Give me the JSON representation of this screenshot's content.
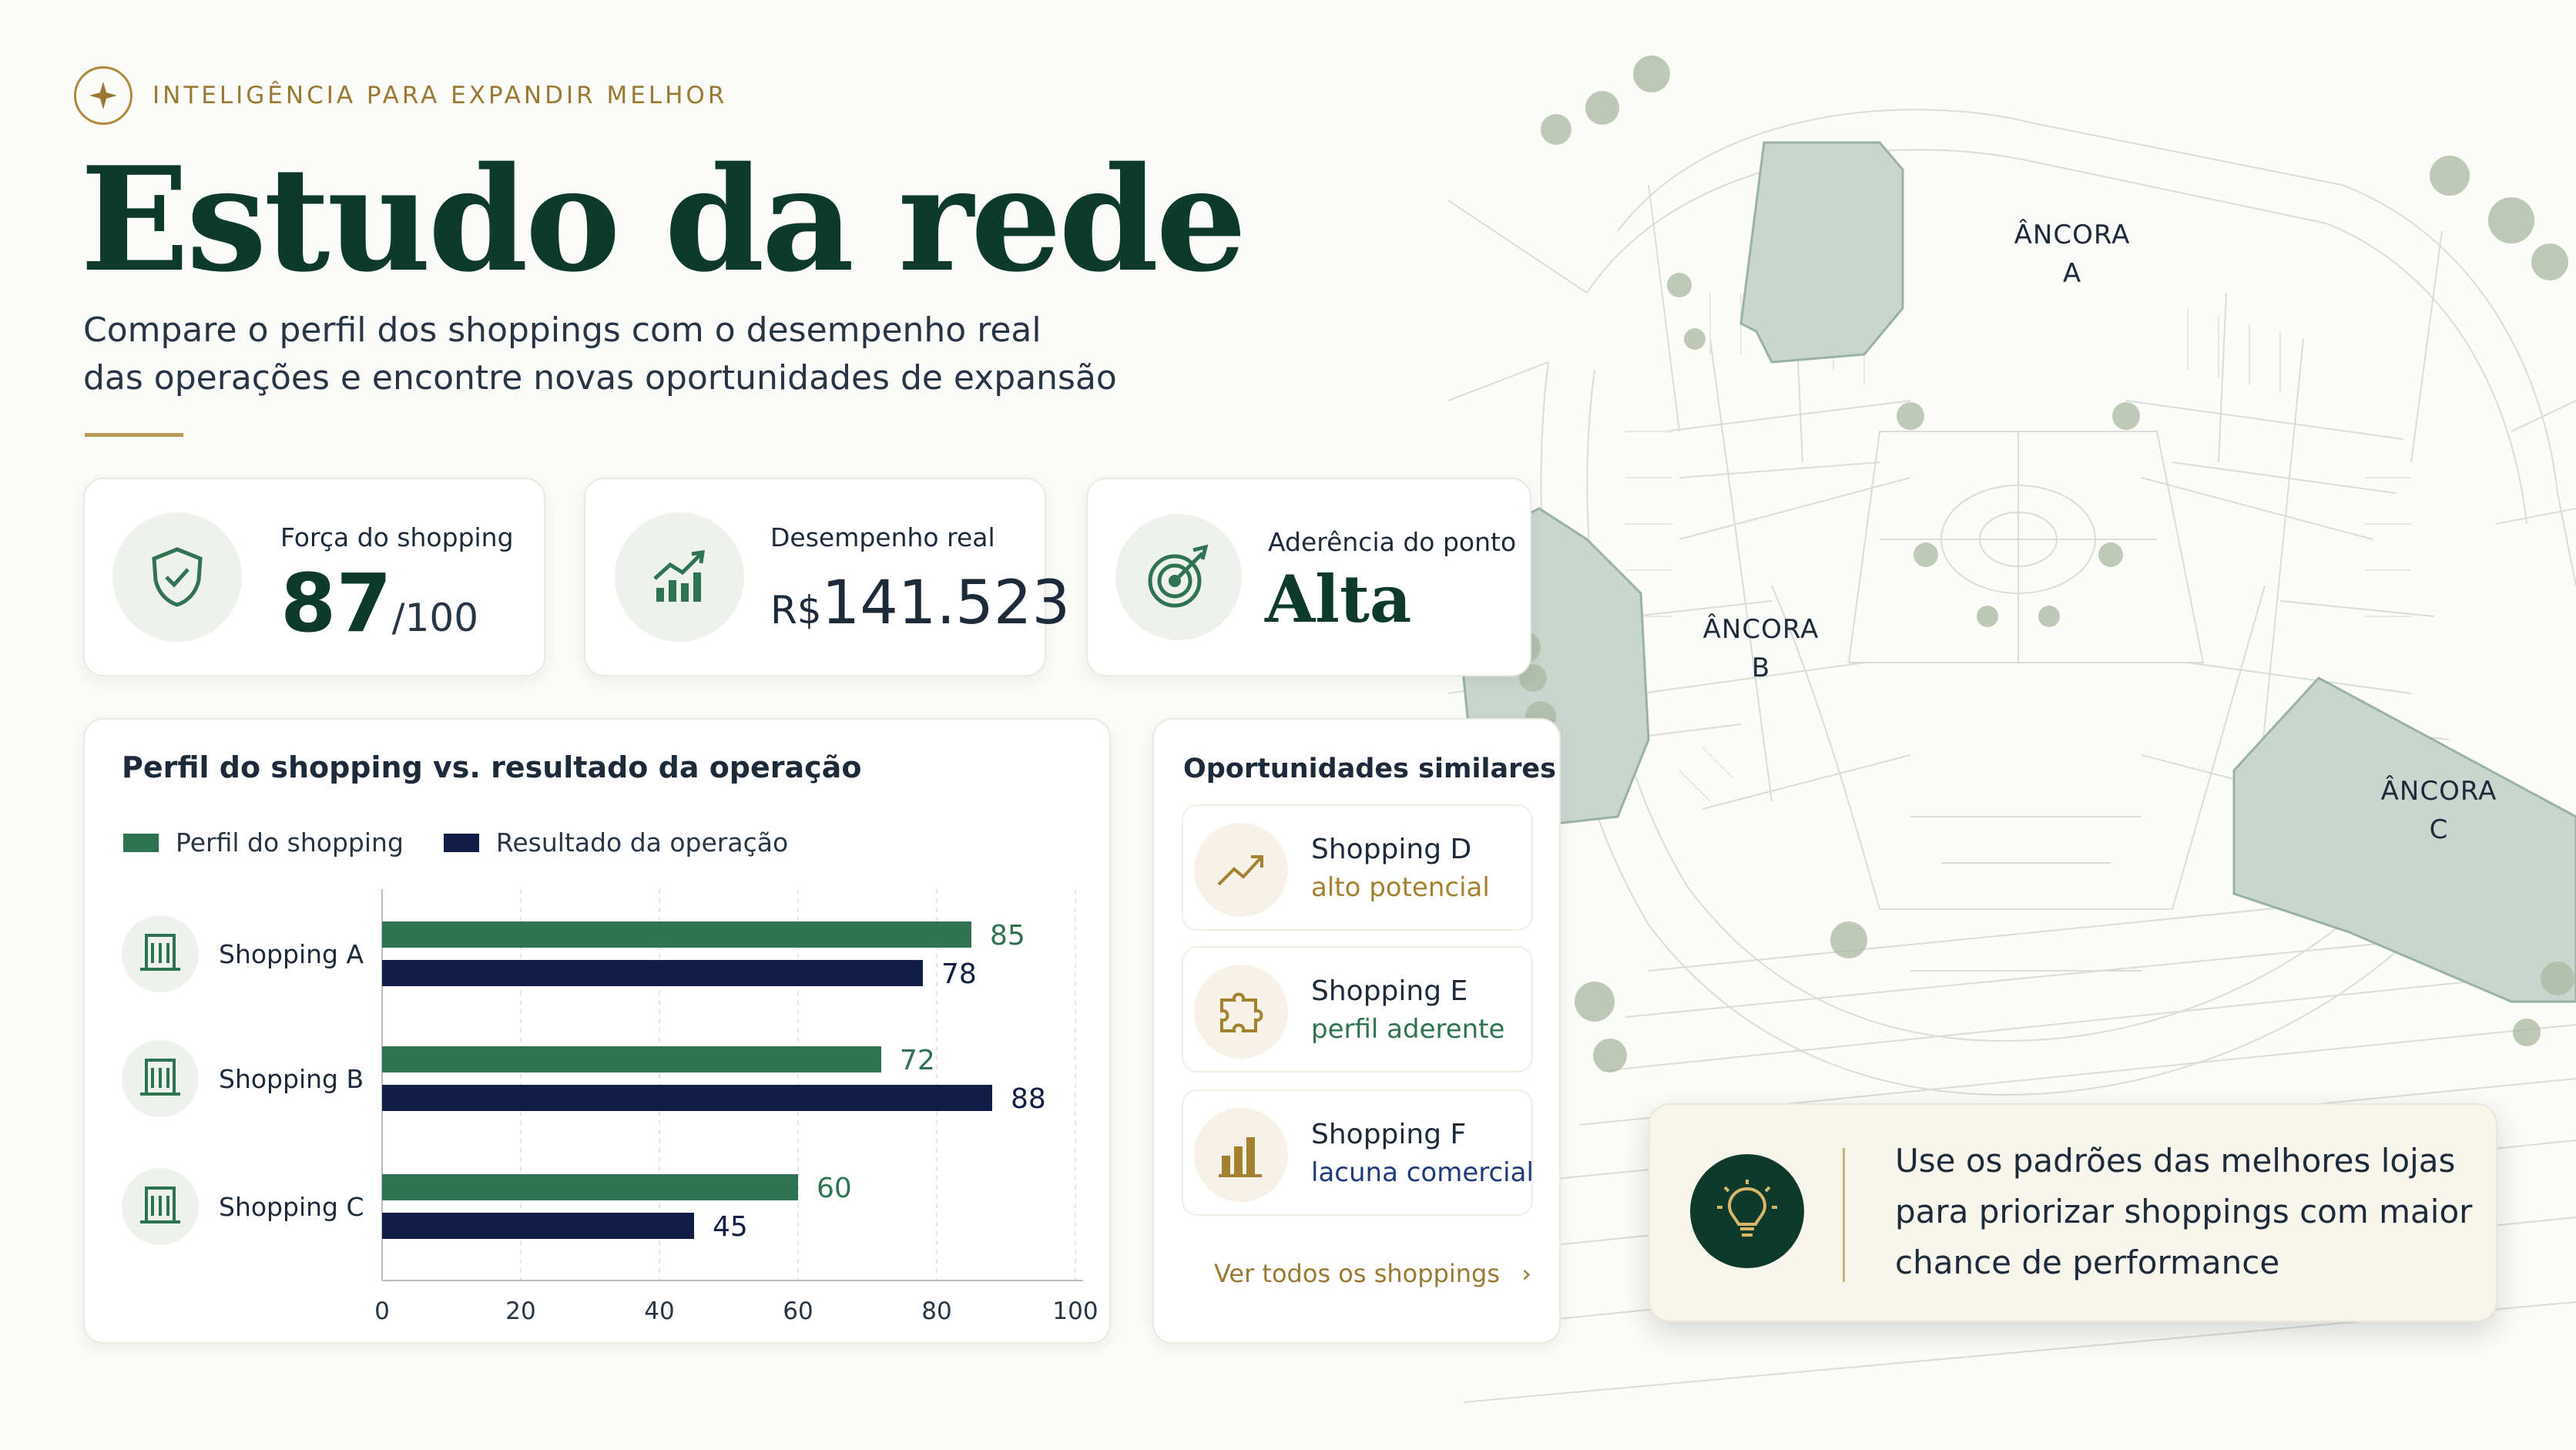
{
  "header": {
    "eyebrow": "INTELIGÊNCIA PARA EXPANDIR MELHOR",
    "title": "Estudo da rede",
    "subtitle_line1": "Compare o perfil dos shoppings com o desempenho real",
    "subtitle_line2": "das operações e encontre novas oportunidades de expansão",
    "icon": "sparkle-icon"
  },
  "kpis": [
    {
      "label": "Força do shopping",
      "value": "87",
      "suffix": "/100",
      "icon": "shield-check-icon"
    },
    {
      "label": "Desempenho real",
      "prefix": "R$",
      "value": "141.523",
      "icon": "growth-chart-icon"
    },
    {
      "label": "Aderência do ponto",
      "value": "Alta",
      "icon": "target-icon"
    }
  ],
  "comparison": {
    "title": "Perfil do shopping vs. resultado da operação",
    "legend": [
      "Perfil do shopping",
      "Resultado da operação"
    ],
    "row_icon": "building-icon"
  },
  "chart_data": {
    "type": "bar",
    "orientation": "horizontal",
    "categories": [
      "Shopping A",
      "Shopping B",
      "Shopping C"
    ],
    "series": [
      {
        "name": "Perfil do shopping",
        "values": [
          85,
          72,
          60
        ],
        "color": "#2f7352"
      },
      {
        "name": "Resultado da operação",
        "values": [
          78,
          88,
          45
        ],
        "color": "#111d44"
      }
    ],
    "xlim": [
      0,
      100
    ],
    "xticks": [
      "0",
      "20",
      "40",
      "60",
      "80",
      "100"
    ],
    "grid": true,
    "legend_position": "top-left",
    "xlabel": "",
    "ylabel": ""
  },
  "opportunities": {
    "title": "Oportunidades similares",
    "items": [
      {
        "name": "Shopping D",
        "status": "alto potencial",
        "status_color": "#a5802e",
        "icon": "trend-up-icon"
      },
      {
        "name": "Shopping E",
        "status": "perfil aderente",
        "status_color": "#2f7352",
        "icon": "puzzle-icon"
      },
      {
        "name": "Shopping F",
        "status": "lacuna comercial",
        "status_color": "#1f3a7a",
        "icon": "bar-chart-icon"
      }
    ],
    "see_all": "Ver todos os shoppings",
    "see_all_icon": "chevron-right-icon"
  },
  "map": {
    "anchors": [
      {
        "line1": "ÂNCORA",
        "line2": "A"
      },
      {
        "line1": "ÂNCORA",
        "line2": "B"
      },
      {
        "line1": "ÂNCORA",
        "line2": "C"
      }
    ],
    "anchor_color": "#c9d6cf"
  },
  "insight": {
    "line1": "Use os padrões das melhores lojas",
    "line2": "para priorizar shoppings com maior",
    "line3": "chance de performance",
    "icon": "lightbulb-icon"
  },
  "colors": {
    "green": "#2f7352",
    "navy": "#111d44",
    "gold": "#b08a3a",
    "title_green": "#0e3a2c"
  }
}
